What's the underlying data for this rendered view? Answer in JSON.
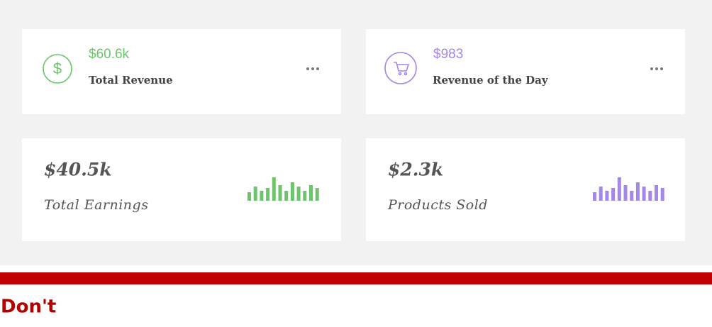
{
  "cards": [
    {
      "value": "$60.6k",
      "label": "Total Revenue",
      "color": "#6cc46c"
    },
    {
      "value": "$983",
      "label": "Revenue of the Day",
      "color": "#a487e6"
    },
    {
      "value": "$40.5k",
      "label": "Total Earnings",
      "color": "#6cc46c",
      "sparkline": [
        12,
        20,
        14,
        18,
        33,
        22,
        14,
        26,
        20,
        14,
        22,
        18
      ]
    },
    {
      "value": "$2.3k",
      "label": "Products Sold",
      "color": "#a487e6",
      "sparkline": [
        12,
        20,
        14,
        18,
        33,
        22,
        14,
        26,
        20,
        14,
        22,
        18
      ]
    }
  ],
  "footer": {
    "title": "Don't"
  }
}
